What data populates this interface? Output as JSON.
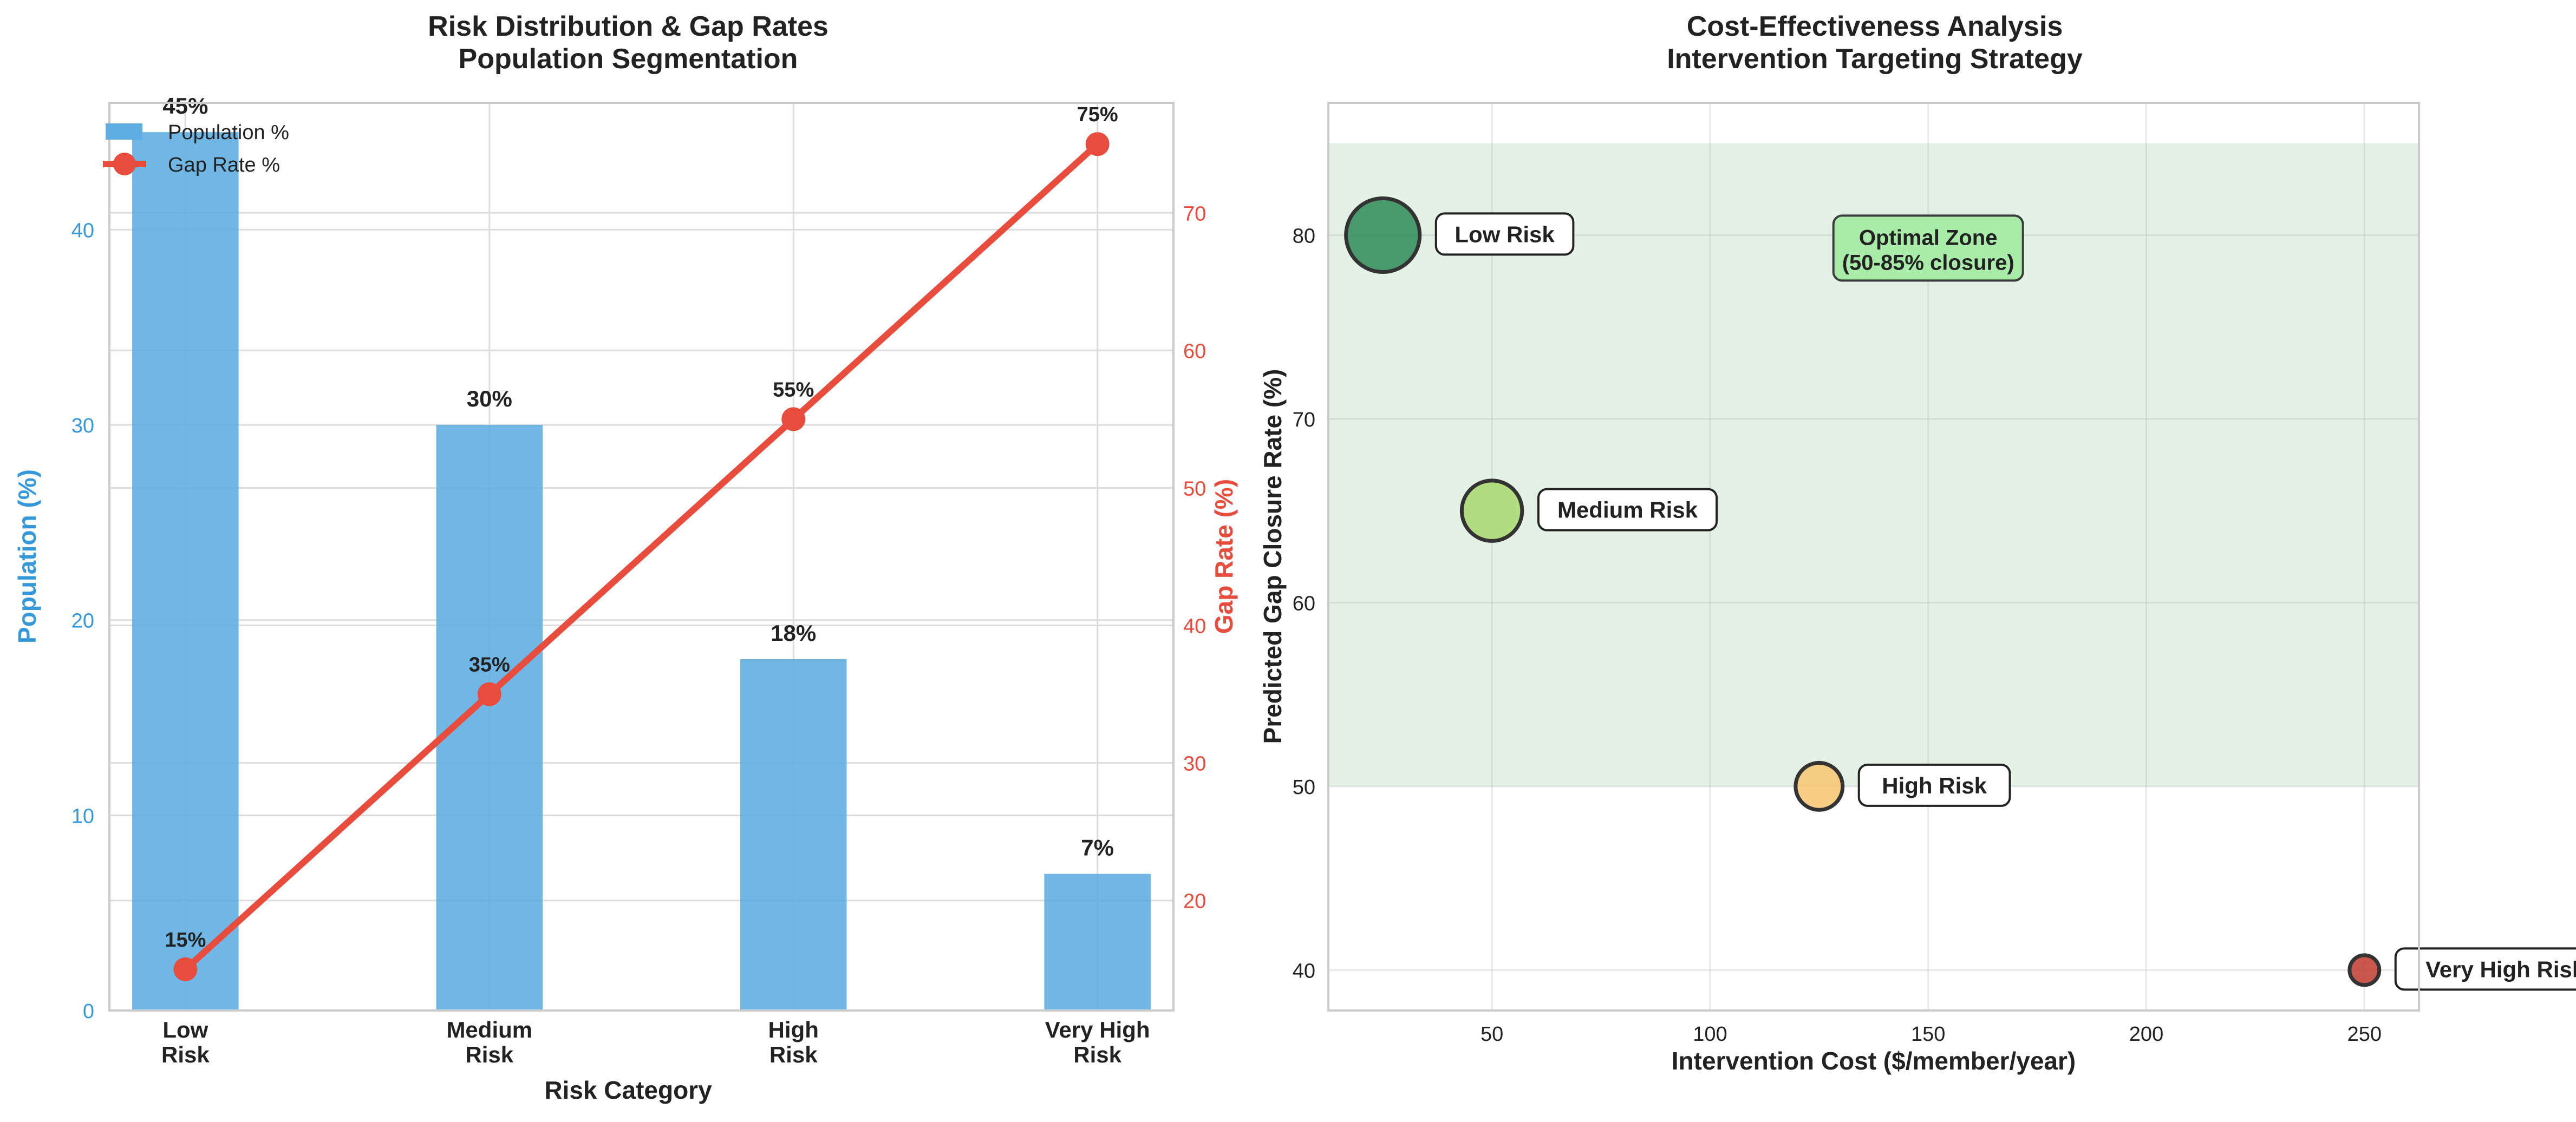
{
  "chart_data": [
    {
      "type": "bar",
      "title": "Risk Distribution & Gap Rates",
      "subtitle": "Population Segmentation",
      "xlabel": "Risk Category",
      "ylabel": "Population (%)",
      "ylabel_right": "Gap Rate (%)",
      "categories": [
        "Low\nRisk",
        "Medium\nRisk",
        "High\nRisk",
        "Very High\nRisk"
      ],
      "ylim": [
        0,
        46.5
      ],
      "yticks": [
        0,
        10,
        20,
        30,
        40
      ],
      "ylim_right": [
        12.0,
        78.0
      ],
      "yticks_right": [
        20,
        30,
        40,
        50,
        60,
        70
      ],
      "series": [
        {
          "name": "Population %",
          "type": "bar",
          "values": [
            45,
            30,
            18,
            7
          ],
          "labels": [
            "45%",
            "30%",
            "18%",
            "7%"
          ],
          "color": "#5DADE2"
        },
        {
          "name": "Gap Rate %",
          "type": "line",
          "axis": "right",
          "values": [
            15,
            35,
            55,
            75
          ],
          "labels": [
            "15%",
            "35%",
            "55%",
            "75%"
          ],
          "color": "#E74C3C"
        }
      ],
      "grid": true,
      "legend": "top-left",
      "colors": {
        "left_axis": "#3498DB",
        "right_axis": "#E74C3C"
      }
    },
    {
      "type": "scatter",
      "title": "Cost-Effectiveness Analysis",
      "subtitle": "Intervention Targeting Strategy",
      "xlabel": "Intervention Cost ($/member/year)",
      "ylabel": "Predicted Gap Closure Rate (%)",
      "xlim": [
        12.5,
        262.5
      ],
      "ylim": [
        37.8,
        87.2
      ],
      "xticks": [
        50,
        100,
        150,
        200,
        250
      ],
      "yticks": [
        40,
        50,
        60,
        70,
        80
      ],
      "points": [
        {
          "label": "Low Risk",
          "x": 25,
          "y": 80,
          "size": 45,
          "color": "#2E8B57"
        },
        {
          "label": "Medium Risk",
          "x": 50,
          "y": 65,
          "size": 30,
          "color": "#A8D86E"
        },
        {
          "label": "High Risk",
          "x": 125,
          "y": 50,
          "size": 18,
          "color": "#F8C471"
        },
        {
          "label": "Very High Risk",
          "x": 250,
          "y": 40,
          "size": 7,
          "color": "#C0392B"
        }
      ],
      "zone": {
        "x_from": 12.5,
        "x_to": 262.5,
        "y_from": 50,
        "y_to": 85,
        "color": "#C8E6C9"
      },
      "annotation": {
        "text": "Optimal Zone\n(50-85% closure)",
        "x": 150,
        "y": 79,
        "color": "#A9EBA9"
      },
      "grid": true
    }
  ]
}
